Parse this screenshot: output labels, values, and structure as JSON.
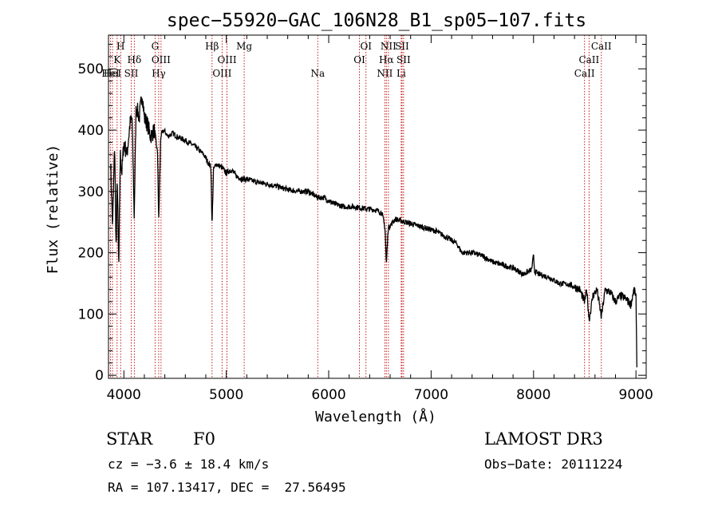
{
  "chart_data": {
    "type": "line",
    "title": "spec−55920−GAC_106N28_B1_sp05−107.fits",
    "xlabel": "Wavelength (Å)",
    "ylabel": "Flux (relative)",
    "xlim": [
      3850,
      9100
    ],
    "ylim": [
      -5,
      555
    ],
    "xticks": [
      4000,
      5000,
      6000,
      7000,
      8000,
      9000
    ],
    "yticks": [
      0,
      100,
      200,
      300,
      400,
      500
    ],
    "series": [
      {
        "name": "spectrum",
        "x": [
          3870,
          3890,
          3910,
          3925,
          3935,
          3950,
          3965,
          3980,
          4000,
          4030,
          4060,
          4080,
          4101,
          4120,
          4150,
          4180,
          4200,
          4230,
          4260,
          4300,
          4330,
          4340,
          4360,
          4390,
          4430,
          4480,
          4530,
          4580,
          4630,
          4680,
          4730,
          4780,
          4830,
          4850,
          4861,
          4875,
          4900,
          4950,
          5000,
          5050,
          5100,
          5150,
          5200,
          5300,
          5400,
          5500,
          5600,
          5700,
          5800,
          5893,
          5950,
          6050,
          6150,
          6250,
          6350,
          6450,
          6520,
          6550,
          6563,
          6580,
          6650,
          6750,
          6850,
          6950,
          7050,
          7150,
          7250,
          7300,
          7400,
          7500,
          7600,
          7700,
          7800,
          7900,
          7980,
          8000,
          8010,
          8050,
          8150,
          8250,
          8350,
          8450,
          8498,
          8520,
          8542,
          8580,
          8620,
          8662,
          8700,
          8750,
          8800,
          8850,
          8900,
          8950,
          8980,
          9000,
          9010
        ],
        "values": [
          350,
          240,
          380,
          200,
          330,
          170,
          360,
          330,
          380,
          360,
          410,
          420,
          260,
          440,
          420,
          460,
          420,
          410,
          390,
          400,
          360,
          250,
          390,
          400,
          390,
          395,
          388,
          385,
          380,
          375,
          368,
          360,
          345,
          340,
          240,
          335,
          345,
          340,
          330,
          335,
          325,
          320,
          320,
          315,
          312,
          308,
          303,
          300,
          300,
          290,
          290,
          280,
          275,
          275,
          272,
          270,
          265,
          240,
          180,
          240,
          255,
          250,
          245,
          240,
          235,
          225,
          215,
          200,
          200,
          195,
          185,
          180,
          175,
          165,
          172,
          195,
          170,
          165,
          160,
          150,
          148,
          140,
          120,
          140,
          90,
          130,
          140,
          95,
          140,
          135,
          120,
          130,
          125,
          115,
          140,
          130,
          0
        ]
      }
    ],
    "lines": [
      {
        "wl": 3869,
        "rank": 2,
        "label": "HeI"
      },
      {
        "wl": 3889,
        "rank": 2,
        "label": "HeI"
      },
      {
        "wl": 3934,
        "rank": 1,
        "label": "K"
      },
      {
        "wl": 3969,
        "rank": 0,
        "label": "H"
      },
      {
        "wl": 4072,
        "rank": 2,
        "label": "SII"
      },
      {
        "wl": 4102,
        "rank": 1,
        "label": "Hδ"
      },
      {
        "wl": 4305,
        "rank": 0,
        "label": "G"
      },
      {
        "wl": 4340,
        "rank": 2,
        "label": "Hγ"
      },
      {
        "wl": 4363,
        "rank": 1,
        "label": "OIII"
      },
      {
        "wl": 4861,
        "rank": 0,
        "label": "Hβ"
      },
      {
        "wl": 4959,
        "rank": 2,
        "label": "OIII"
      },
      {
        "wl": 5007,
        "rank": 1,
        "label": "OIII"
      },
      {
        "wl": 5175,
        "rank": 0,
        "label": "Mg"
      },
      {
        "wl": 5893,
        "rank": 2,
        "label": "Na"
      },
      {
        "wl": 6300,
        "rank": 1,
        "label": "OI"
      },
      {
        "wl": 6364,
        "rank": 0,
        "label": "OI"
      },
      {
        "wl": 6548,
        "rank": 2,
        "label": "NII"
      },
      {
        "wl": 6563,
        "rank": 1,
        "label": "Hα"
      },
      {
        "wl": 6583,
        "rank": 0,
        "label": "NII"
      },
      {
        "wl": 6708,
        "rank": 2,
        "label": "Li"
      },
      {
        "wl": 6716,
        "rank": 0,
        "label": "SII"
      },
      {
        "wl": 6731,
        "rank": 1,
        "label": "SII"
      },
      {
        "wl": 8498,
        "rank": 2,
        "label": "CaII"
      },
      {
        "wl": 8542,
        "rank": 1,
        "label": "CaII"
      },
      {
        "wl": 8662,
        "rank": 0,
        "label": "CaII"
      }
    ]
  },
  "info": {
    "object_class": "STAR",
    "subclass": "F0",
    "cz": "cz = −3.6 ± 18.4 km/s",
    "radec": "RA = 107.13417, DEC =  27.56495",
    "survey": "LAMOST DR3",
    "obs_date": "Obs−Date: 20111224"
  },
  "colors": {
    "axis": "#000000",
    "spectrum": "#000000",
    "line_marker": "#c00000"
  }
}
